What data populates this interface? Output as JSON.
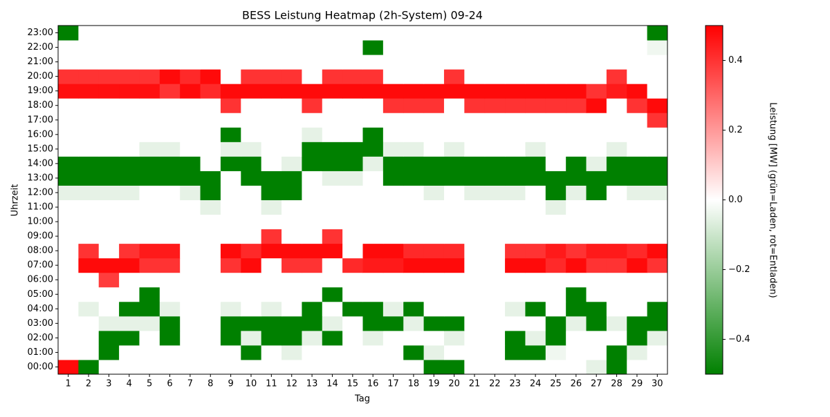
{
  "chart_data": {
    "type": "heatmap",
    "title": "BESS Leistung Heatmap (2h-System) 09-24",
    "x_label": "Tag",
    "y_label": "Uhrzeit",
    "colorbar_label": "Leistung [MW] (grün=Laden, rot=Entladen)",
    "x": [
      1,
      2,
      3,
      4,
      5,
      6,
      7,
      8,
      9,
      10,
      11,
      12,
      13,
      14,
      15,
      16,
      17,
      18,
      19,
      20,
      21,
      22,
      23,
      24,
      25,
      26,
      27,
      28,
      29,
      30
    ],
    "y": [
      "00:00",
      "01:00",
      "02:00",
      "03:00",
      "04:00",
      "05:00",
      "06:00",
      "07:00",
      "08:00",
      "09:00",
      "10:00",
      "11:00",
      "12:00",
      "13:00",
      "14:00",
      "15:00",
      "16:00",
      "17:00",
      "18:00",
      "19:00",
      "20:00",
      "21:00",
      "22:00",
      "23:00"
    ],
    "z": [
      [
        0.48,
        -0.5,
        0,
        0,
        0,
        0,
        0,
        0,
        0,
        0,
        0,
        0,
        0,
        0,
        0,
        0,
        0,
        0,
        -0.5,
        -0.5,
        0,
        0,
        0,
        0,
        0,
        0,
        -0.05,
        -0.5,
        0,
        0
      ],
      [
        0,
        0,
        -0.5,
        0,
        0,
        0,
        0,
        0,
        0,
        -0.5,
        0,
        -0.05,
        0,
        0,
        0,
        0,
        0,
        -0.5,
        -0.05,
        0,
        0,
        0,
        -0.5,
        -0.5,
        -0.03,
        0,
        0,
        -0.5,
        -0.05,
        0
      ],
      [
        0,
        0,
        -0.5,
        -0.5,
        0,
        -0.5,
        0,
        0,
        -0.5,
        -0.05,
        -0.5,
        -0.5,
        -0.05,
        -0.5,
        0,
        -0.05,
        0,
        0,
        0,
        -0.05,
        0,
        0,
        -0.5,
        -0.05,
        -0.5,
        0,
        0,
        0,
        -0.5,
        -0.05
      ],
      [
        0,
        0,
        -0.05,
        -0.05,
        -0.05,
        -0.5,
        0,
        0,
        -0.5,
        -0.5,
        -0.5,
        -0.5,
        -0.5,
        -0.05,
        0,
        -0.5,
        -0.5,
        -0.05,
        -0.5,
        -0.5,
        0,
        0,
        0,
        0,
        -0.5,
        -0.05,
        -0.5,
        -0.05,
        -0.5,
        -0.5
      ],
      [
        0,
        -0.05,
        0,
        -0.5,
        -0.5,
        -0.05,
        0,
        0,
        -0.05,
        0,
        -0.05,
        0,
        -0.5,
        0,
        -0.5,
        -0.5,
        -0.05,
        -0.5,
        0,
        0,
        0,
        0,
        -0.05,
        -0.5,
        0,
        -0.5,
        -0.5,
        0,
        0,
        -0.5
      ],
      [
        0,
        0,
        0,
        0,
        -0.5,
        0,
        0,
        0,
        0,
        0,
        0,
        0,
        0,
        -0.5,
        0,
        0,
        0,
        0,
        0,
        0,
        0,
        0,
        0,
        0,
        0,
        -0.5,
        0,
        0,
        0,
        0
      ],
      [
        0,
        0,
        0.38,
        0,
        0,
        0,
        0,
        0,
        0,
        0,
        0,
        0,
        0,
        0,
        0,
        0,
        0,
        0,
        0,
        0,
        0,
        0,
        0,
        0,
        0,
        0,
        0,
        0,
        0,
        0
      ],
      [
        0,
        0.48,
        0.48,
        0.48,
        0.4,
        0.4,
        0,
        0,
        0.4,
        0.48,
        0,
        0.4,
        0.4,
        0,
        0.42,
        0.45,
        0.45,
        0.48,
        0.48,
        0.48,
        0,
        0,
        0.48,
        0.48,
        0.42,
        0.48,
        0.4,
        0.4,
        0.48,
        0.4
      ],
      [
        0,
        0.4,
        0,
        0.4,
        0.45,
        0.45,
        0,
        0,
        0.48,
        0.42,
        0.48,
        0.48,
        0.48,
        0.48,
        0,
        0.48,
        0.48,
        0.42,
        0.42,
        0.42,
        0,
        0,
        0.4,
        0.4,
        0.45,
        0.4,
        0.45,
        0.45,
        0.42,
        0.48
      ],
      [
        0,
        0,
        0,
        0,
        0,
        0,
        0,
        0,
        0,
        0,
        0.4,
        0,
        0,
        0.4,
        0,
        0,
        0,
        0,
        0,
        0,
        0,
        0,
        0,
        0,
        0,
        0,
        0,
        0,
        0,
        0
      ],
      [
        0,
        0,
        0,
        0,
        0,
        0,
        0,
        0,
        0,
        0,
        0,
        0,
        0,
        0,
        0,
        0,
        0,
        0,
        0,
        0,
        0,
        0,
        0,
        0,
        0,
        0,
        0,
        0,
        0,
        0
      ],
      [
        0,
        0,
        0,
        0,
        0,
        0,
        0,
        -0.05,
        0,
        0,
        -0.05,
        0,
        0,
        0,
        0,
        0,
        0,
        0,
        0,
        0,
        0,
        0,
        0,
        0,
        -0.05,
        0,
        0,
        0,
        0,
        0
      ],
      [
        -0.05,
        -0.05,
        -0.05,
        -0.05,
        0,
        0,
        -0.05,
        -0.5,
        0,
        0,
        -0.5,
        -0.5,
        0,
        0,
        0,
        0,
        0,
        0,
        -0.05,
        0,
        -0.05,
        -0.05,
        -0.05,
        0,
        -0.5,
        -0.05,
        -0.5,
        0,
        -0.05,
        -0.05
      ],
      [
        -0.5,
        -0.5,
        -0.5,
        -0.5,
        -0.5,
        -0.5,
        -0.5,
        -0.5,
        0,
        -0.5,
        -0.5,
        -0.5,
        0,
        -0.05,
        -0.05,
        0,
        -0.5,
        -0.5,
        -0.5,
        -0.5,
        -0.5,
        -0.5,
        -0.5,
        -0.5,
        -0.5,
        -0.5,
        -0.5,
        -0.5,
        -0.5,
        -0.5
      ],
      [
        -0.5,
        -0.5,
        -0.5,
        -0.5,
        -0.5,
        -0.5,
        -0.5,
        0,
        -0.5,
        -0.5,
        0,
        -0.05,
        -0.5,
        -0.5,
        -0.5,
        -0.05,
        -0.5,
        -0.5,
        -0.5,
        -0.5,
        -0.5,
        -0.5,
        -0.5,
        -0.5,
        0,
        -0.5,
        -0.05,
        -0.5,
        -0.5,
        -0.5
      ],
      [
        0,
        0,
        0,
        0,
        -0.05,
        -0.05,
        0,
        0,
        -0.05,
        -0.05,
        0,
        0,
        -0.5,
        -0.5,
        -0.5,
        -0.5,
        -0.05,
        -0.05,
        0,
        -0.05,
        0,
        0,
        0,
        -0.05,
        0,
        0,
        0,
        -0.05,
        0,
        0
      ],
      [
        0,
        0,
        0,
        0,
        0,
        0,
        0,
        0,
        -0.5,
        0,
        0,
        0,
        -0.05,
        0,
        0,
        -0.5,
        0,
        0,
        0,
        0,
        0,
        0,
        0,
        0,
        0,
        0,
        0,
        0,
        0,
        0
      ],
      [
        0,
        0,
        0,
        0,
        0,
        0,
        0,
        0,
        0,
        0,
        0,
        0,
        0,
        0,
        0,
        0,
        0,
        0,
        0,
        0,
        0,
        0,
        0,
        0,
        0,
        0,
        0,
        0,
        0,
        0.4
      ],
      [
        0,
        0,
        0,
        0,
        0,
        0,
        0,
        0,
        0.4,
        0,
        0,
        0,
        0.4,
        0,
        0,
        0,
        0.4,
        0.4,
        0.4,
        0,
        0.4,
        0.4,
        0.4,
        0.4,
        0.4,
        0.4,
        0.48,
        0,
        0.4,
        0.48
      ],
      [
        0.47,
        0.47,
        0.47,
        0.47,
        0.47,
        0.4,
        0.48,
        0.42,
        0.48,
        0.48,
        0.48,
        0.48,
        0.48,
        0.48,
        0.48,
        0.48,
        0.48,
        0.48,
        0.48,
        0.48,
        0.48,
        0.48,
        0.48,
        0.48,
        0.48,
        0.48,
        0.4,
        0.45,
        0.48,
        0
      ],
      [
        0.4,
        0.4,
        0.4,
        0.4,
        0.4,
        0.48,
        0.42,
        0.48,
        0,
        0.4,
        0.4,
        0.4,
        0,
        0.4,
        0.4,
        0.4,
        0,
        0,
        0,
        0.4,
        0,
        0,
        0,
        0,
        0,
        0,
        0,
        0.4,
        0,
        0
      ],
      [
        0,
        0,
        0,
        0,
        0,
        0,
        0,
        0,
        0,
        0,
        0,
        0,
        0,
        0,
        0,
        0,
        0,
        0,
        0,
        0,
        0,
        0,
        0,
        0,
        0,
        0,
        0,
        0,
        0,
        0
      ],
      [
        0,
        0,
        0,
        0,
        0,
        0,
        0,
        0,
        0,
        0,
        0,
        0,
        0,
        0,
        0,
        -0.5,
        0,
        0,
        0,
        0,
        0,
        0,
        0,
        0,
        0,
        0,
        0,
        0,
        0,
        -0.03
      ],
      [
        -0.5,
        0,
        0,
        0,
        0,
        0,
        0,
        0,
        0,
        0,
        0,
        0,
        0,
        0,
        0,
        0,
        0,
        0,
        0,
        0,
        0,
        0,
        0,
        0,
        0,
        0,
        0,
        0,
        0,
        -0.5
      ]
    ],
    "zlim": [
      -0.5,
      0.5
    ],
    "colors": [
      "#008000",
      "#ffffff",
      "#ff0000"
    ],
    "zticks": [
      {
        "value": -0.4,
        "label": "−0.4"
      },
      {
        "value": -0.2,
        "label": "−0.2"
      },
      {
        "value": 0,
        "label": "0.0"
      },
      0.2,
      0.4
    ]
  }
}
